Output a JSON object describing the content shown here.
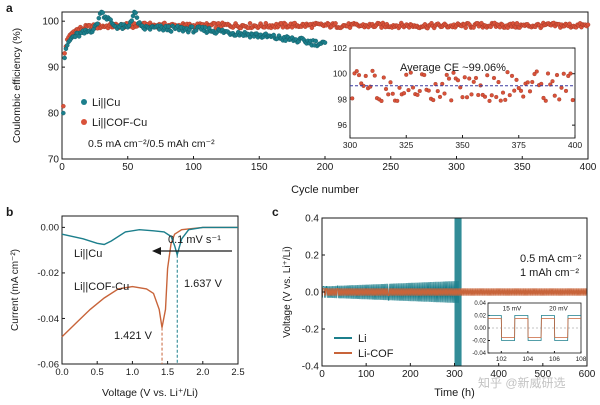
{
  "colors": {
    "teal": "#1c7f8c",
    "orange": "#d9523a",
    "curve_orange": "#c8643a",
    "ink": "#1a1a1a",
    "avg_line": "#3a3aa0"
  },
  "watermark": "知乎 @新威研选",
  "chart_data": [
    {
      "panel": "a",
      "type": "scatter",
      "xlabel": "Cycle number",
      "ylabel": "Coulombic efficiency (%)",
      "xlim": [
        0,
        400
      ],
      "ylim": [
        70,
        102
      ],
      "xticks": [
        "0",
        "50",
        "100",
        "150",
        "200",
        "250",
        "300",
        "350",
        "400"
      ],
      "yticks": [
        "70",
        "80",
        "90",
        "100"
      ],
      "legend": [
        "Li||Cu",
        "Li||COF-Cu"
      ],
      "condition": "0.5 mA cm⁻²/0.5 mAh cm⁻²",
      "series": [
        {
          "name": "Li||Cu",
          "x": [
            1,
            2,
            3,
            5,
            8,
            12,
            18,
            25,
            30,
            40,
            50,
            55,
            60,
            70,
            80,
            90,
            100,
            110,
            120,
            130,
            140,
            150,
            160,
            170,
            180,
            190,
            200
          ],
          "y": [
            80,
            92,
            94,
            95.5,
            96.5,
            97,
            97.5,
            98.5,
            102,
            99,
            98.5,
            102,
            98.5,
            98.5,
            98.4,
            98.3,
            98.2,
            98.1,
            97.8,
            97.5,
            97.2,
            96.9,
            96.5,
            96.2,
            95.8,
            95.4,
            95
          ]
        },
        {
          "name": "Li||COF-Cu",
          "x": [
            1,
            2,
            4,
            6,
            10,
            15,
            20,
            30,
            40,
            50,
            60,
            75,
            100,
            125,
            150,
            175,
            200,
            225,
            250,
            275,
            300,
            325,
            350,
            375,
            400
          ],
          "y": [
            81.5,
            93,
            96,
            97,
            98,
            98.4,
            98.7,
            98.9,
            99,
            99,
            99.1,
            99.1,
            99,
            99.1,
            99,
            99.1,
            99.1,
            99,
            99.1,
            99,
            99,
            99.1,
            99,
            99.1,
            99
          ]
        }
      ],
      "inset": {
        "xlim": [
          300,
          400
        ],
        "ylim": [
          95,
          102
        ],
        "xticks": [
          "300",
          "325",
          "350",
          "375",
          "400"
        ],
        "yticks": [
          "96",
          "98",
          "100",
          "102"
        ],
        "annotation": "Average CE ~99.06%",
        "average": 99.06
      }
    },
    {
      "panel": "b",
      "type": "line",
      "xlabel": "Voltage (V vs. Li⁺/Li)",
      "ylabel": "Current (mA cm⁻²)",
      "xlim": [
        0,
        2.5
      ],
      "ylim": [
        -0.06,
        0.005
      ],
      "xticks": [
        "0.0",
        "0.5",
        "1.0",
        "1.5",
        "2.0",
        "2.5"
      ],
      "yticks": [
        "0.00",
        "-0.02",
        "-0.04",
        "-0.06"
      ],
      "scan_rate": "0.1 mV s⁻¹",
      "series": [
        {
          "name": "Li||Cu",
          "x": [
            0,
            0.3,
            0.5,
            0.6,
            0.7,
            0.9,
            1.1,
            1.3,
            1.45,
            1.55,
            1.6,
            1.637,
            1.7,
            1.8,
            2.0,
            2.5
          ],
          "y": [
            -0.003,
            -0.005,
            -0.007,
            -0.0075,
            -0.006,
            -0.002,
            -0.001,
            -0.0015,
            -0.002,
            -0.004,
            -0.008,
            -0.012,
            -0.005,
            -0.001,
            0,
            0
          ]
        },
        {
          "name": "Li||COF-Cu",
          "x": [
            0,
            0.2,
            0.4,
            0.6,
            0.8,
            1.0,
            1.2,
            1.3,
            1.38,
            1.421,
            1.47,
            1.5,
            1.55,
            1.6,
            1.7,
            2.0,
            2.5
          ],
          "y": [
            -0.048,
            -0.042,
            -0.036,
            -0.031,
            -0.027,
            -0.026,
            -0.027,
            -0.029,
            -0.036,
            -0.044,
            -0.036,
            -0.018,
            -0.007,
            -0.003,
            -0.001,
            0,
            0
          ]
        }
      ],
      "peaks": [
        {
          "label": "1.637 V",
          "x": 1.637
        },
        {
          "label": "1.421 V",
          "x": 1.421
        }
      ]
    },
    {
      "panel": "c",
      "type": "line",
      "xlabel": "Time (h)",
      "ylabel": "Voltage (V vs. Li⁺/Li)",
      "xlim": [
        0,
        600
      ],
      "ylim": [
        -0.4,
        0.4
      ],
      "xticks": [
        "0",
        "100",
        "200",
        "300",
        "400",
        "500",
        "600"
      ],
      "yticks": [
        "-0.4",
        "-0.2",
        "0.0",
        "0.2",
        "0.4"
      ],
      "condition_lines": [
        "0.5 mA cm⁻²",
        "1 mAh cm⁻²"
      ],
      "series": [
        {
          "name": "Li",
          "amplitude_start": 0.03,
          "amplitude_before_failure": 0.06,
          "failure_time": 310
        },
        {
          "name": "Li-COF",
          "amplitude": 0.02,
          "end_time": 600
        }
      ],
      "inset": {
        "xlim": [
          101,
          108
        ],
        "ylim": [
          -0.04,
          0.04
        ],
        "xticks": [
          "102",
          "104",
          "106",
          "108"
        ],
        "yticks": [
          "0.04",
          "0.02",
          "0.00",
          "-0.02",
          "-0.04"
        ],
        "labels": [
          "15 mV",
          "20 mV"
        ]
      }
    }
  ]
}
